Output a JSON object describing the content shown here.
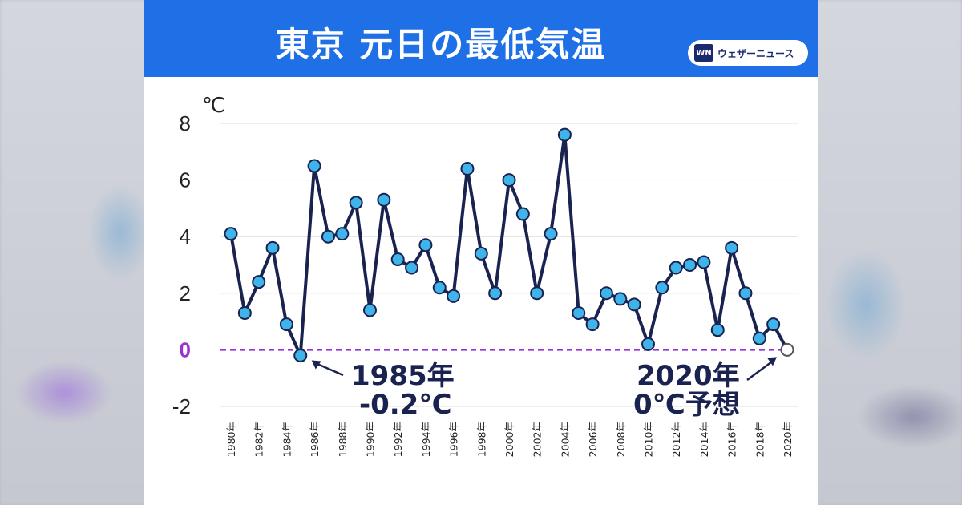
{
  "title": "東京 元日の最低気温",
  "logo": {
    "mark": "WN",
    "text": "ウェザーニュース"
  },
  "colors": {
    "header": "#1f6fe6",
    "line": "#1a2250",
    "marker": "#3fb4ea",
    "forecast_marker": "#ffffff",
    "zero_line": "#9a33d6",
    "grid": "#dddddd"
  },
  "annotations": [
    {
      "lines": [
        "1985年",
        "-0.2℃"
      ]
    },
    {
      "lines": [
        "2020年",
        "0℃予想"
      ]
    }
  ],
  "chart_data": {
    "type": "line",
    "title": "東京 元日の最低気温",
    "ylabel": "℃",
    "xlabel": "",
    "ylim": [
      -2,
      8
    ],
    "yticks": [
      8,
      6,
      4,
      2,
      0,
      -2
    ],
    "grid": true,
    "categories": [
      "1980年",
      "1981年",
      "1982年",
      "1983年",
      "1984年",
      "1985年",
      "1986年",
      "1987年",
      "1988年",
      "1989年",
      "1990年",
      "1991年",
      "1992年",
      "1993年",
      "1994年",
      "1995年",
      "1996年",
      "1997年",
      "1998年",
      "1999年",
      "2000年",
      "2001年",
      "2002年",
      "2003年",
      "2004年",
      "2005年",
      "2006年",
      "2007年",
      "2008年",
      "2009年",
      "2010年",
      "2011年",
      "2012年",
      "2013年",
      "2014年",
      "2015年",
      "2016年",
      "2017年",
      "2018年",
      "2019年",
      "2020年"
    ],
    "x_tick_labels": [
      "1980年",
      "1982年",
      "1984年",
      "1986年",
      "1988年",
      "1990年",
      "1992年",
      "1994年",
      "1996年",
      "1998年",
      "2000年",
      "2002年",
      "2004年",
      "2006年",
      "2008年",
      "2010年",
      "2012年",
      "2014年",
      "2016年",
      "2018年",
      "2020年"
    ],
    "series": [
      {
        "values": [
          4.1,
          1.3,
          2.4,
          3.6,
          0.9,
          -0.2,
          6.5,
          4.0,
          4.1,
          5.2,
          1.4,
          5.3,
          3.2,
          2.9,
          3.7,
          2.2,
          1.9,
          6.4,
          3.4,
          2.0,
          6.0,
          4.8,
          2.0,
          4.1,
          7.6,
          1.3,
          0.9,
          2.0,
          1.8,
          1.6,
          0.2,
          2.2,
          2.9,
          3.0,
          3.1,
          0.7,
          3.6,
          2.0,
          0.4,
          0.9,
          0.0
        ]
      }
    ],
    "forecast_point": {
      "x": "2020年",
      "y": 0
    },
    "reference_line": {
      "y": 0,
      "style": "dashed"
    }
  }
}
